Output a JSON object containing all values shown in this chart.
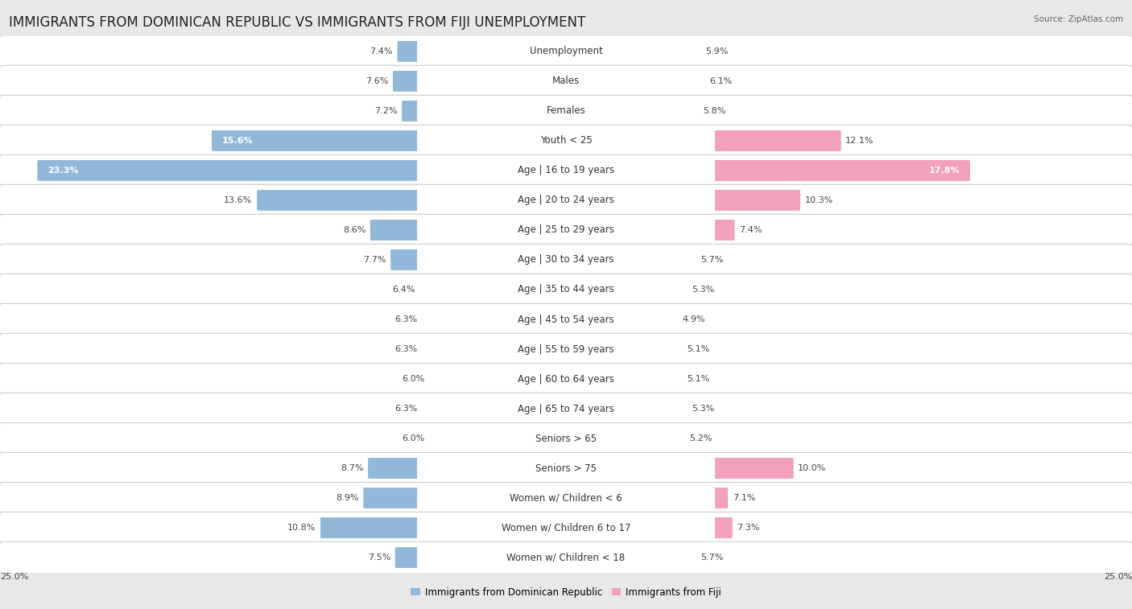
{
  "title": "IMMIGRANTS FROM DOMINICAN REPUBLIC VS IMMIGRANTS FROM FIJI UNEMPLOYMENT",
  "source": "Source: ZipAtlas.com",
  "categories": [
    "Unemployment",
    "Males",
    "Females",
    "Youth < 25",
    "Age | 16 to 19 years",
    "Age | 20 to 24 years",
    "Age | 25 to 29 years",
    "Age | 30 to 34 years",
    "Age | 35 to 44 years",
    "Age | 45 to 54 years",
    "Age | 55 to 59 years",
    "Age | 60 to 64 years",
    "Age | 65 to 74 years",
    "Seniors > 65",
    "Seniors > 75",
    "Women w/ Children < 6",
    "Women w/ Children 6 to 17",
    "Women w/ Children < 18"
  ],
  "left_values": [
    7.4,
    7.6,
    7.2,
    15.6,
    23.3,
    13.6,
    8.6,
    7.7,
    6.4,
    6.3,
    6.3,
    6.0,
    6.3,
    6.0,
    8.7,
    8.9,
    10.8,
    7.5
  ],
  "right_values": [
    5.9,
    6.1,
    5.8,
    12.1,
    17.8,
    10.3,
    7.4,
    5.7,
    5.3,
    4.9,
    5.1,
    5.1,
    5.3,
    5.2,
    10.0,
    7.1,
    7.3,
    5.7
  ],
  "left_color": "#92b8d9",
  "right_color": "#f2a0bb",
  "left_label": "Immigrants from Dominican Republic",
  "right_label": "Immigrants from Fiji",
  "axis_max": 25.0,
  "page_bg": "#e8e8e8",
  "row_bg": "#ffffff",
  "title_fontsize": 12,
  "label_fontsize": 8.5,
  "value_fontsize": 8,
  "axis_label_fontsize": 8
}
